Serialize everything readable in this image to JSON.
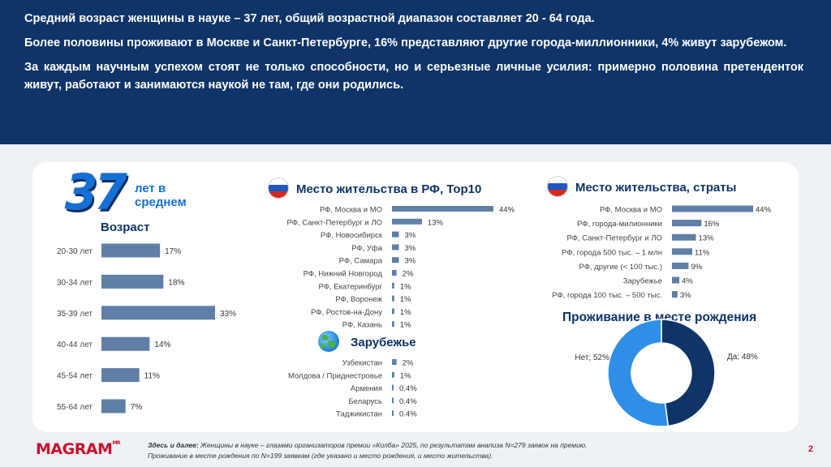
{
  "header": {
    "line1": "Средний возраст женщины в науке – 37 лет, общий возрастной диапазон составляет 20 - 64 года.",
    "line2": "Более половины  проживают в Москве и Санкт-Петербурге, 16% представляют другие города-миллионники, 4% живут зарубежом.",
    "line3": "За каждым научным успехом стоят не только способности, но и серьезные личные усилия: примерно половина претенденток живут, работают и занимаются наукой не там, где они родились."
  },
  "age_block": {
    "big_number": "37",
    "big_caption": "лет в\nсреднем",
    "title": "Возраст"
  },
  "colors": {
    "header_bg": "#0e3468",
    "bar": "#5f7fa6",
    "accent": "#1570d6",
    "donut_dark": "#0e3468",
    "donut_light": "#2f8fe6",
    "logo_red": "#c8102e"
  },
  "chart_data": [
    {
      "type": "bar",
      "orientation": "horizontal",
      "title": "Возраст",
      "categories": [
        "20-30 лет",
        "30-34 лет",
        "35-39 лет",
        "40-44 лет",
        "45-54 лет",
        "55-64 лет"
      ],
      "values": [
        17,
        18,
        33,
        14,
        11,
        7
      ],
      "labels": [
        "17%",
        "18%",
        "33%",
        "14%",
        "11%",
        "7%"
      ],
      "unit": "%"
    },
    {
      "type": "bar",
      "orientation": "horizontal",
      "title": "Место жительства в РФ, Top10",
      "categories": [
        "РФ, Москва и МО",
        "РФ, Санкт-Петербург и ЛО",
        "РФ, Новосибирск",
        "РФ, Уфа",
        "РФ, Самара",
        "РФ, Нижний Новгород",
        "РФ, Екатеринбург",
        "РФ, Воронеж",
        "РФ, Ростов-на-Дону",
        "РФ, Казань"
      ],
      "values": [
        44,
        13,
        3,
        3,
        3,
        2,
        1,
        1,
        1,
        1
      ],
      "labels": [
        "44%",
        "13%",
        "3%",
        "3%",
        "3%",
        "2%",
        "1%",
        "1%",
        "1%",
        "1%"
      ],
      "unit": "%"
    },
    {
      "type": "bar",
      "orientation": "horizontal",
      "title": "Зарубежье",
      "categories": [
        "Узбекистан",
        "Молдова / Приднестровье",
        "Армения",
        "Беларусь",
        "Таджикистан"
      ],
      "values": [
        2,
        1,
        0.4,
        0.4,
        0.4
      ],
      "labels": [
        "2%",
        "1%",
        "0.4%",
        "0.4%",
        "0.4%"
      ],
      "unit": "%"
    },
    {
      "type": "bar",
      "orientation": "horizontal",
      "title": "Место жительства, страты",
      "categories": [
        "РФ, Москва и МО",
        "РФ, города-милионники",
        "РФ, Санкт-Петербург и ЛО",
        "РФ, города 500 тыс. – 1 млн",
        "РФ, другие (< 100 тыс.)",
        "Зарубежье",
        "РФ, города 100 тыс. – 500 тыс."
      ],
      "values": [
        44,
        16,
        13,
        11,
        9,
        4,
        3
      ],
      "labels": [
        "44%",
        "16%",
        "13%",
        "11%",
        "9%",
        "4%",
        "3%"
      ],
      "unit": "%"
    },
    {
      "type": "pie",
      "donut": true,
      "title": "Проживание в месте рождения",
      "slices": [
        {
          "name": "Да",
          "value": 48,
          "label": "Да; 48%"
        },
        {
          "name": "Нет",
          "value": 52,
          "label": "Нет; 52%"
        }
      ]
    }
  ],
  "footer": {
    "logo": "MAGRAM",
    "logo_sup": "MR",
    "note_lead": "Здесь и далее:",
    "note_text": " Женщины в науке – глазами организаторов премии «Колба» 2025, по результатам анализа N=279 заявок на премию.",
    "note_line2": "Проживание в месте рождения по N=199 заявкам (где указано и место рождения, и место жительства).",
    "page": "2"
  }
}
